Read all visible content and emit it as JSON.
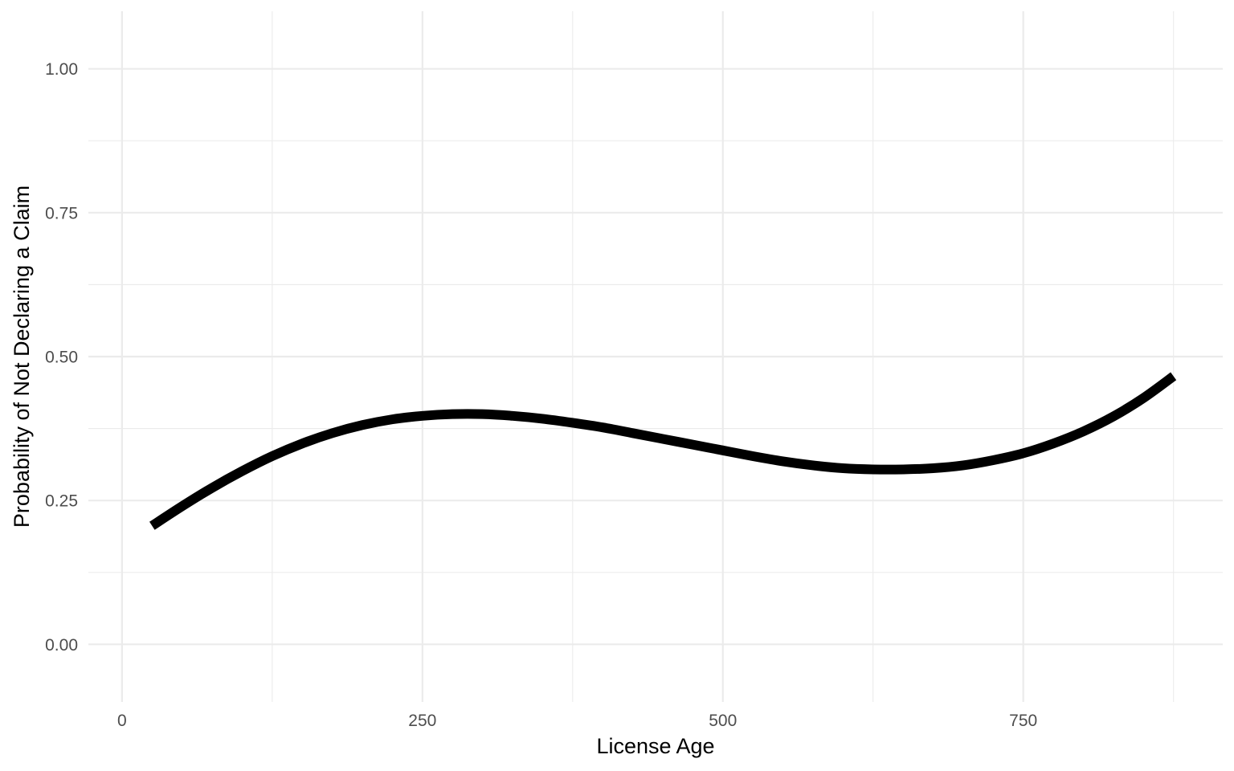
{
  "chart_data": {
    "type": "line",
    "title": "",
    "xlabel": "License Age",
    "ylabel": "Probability of Not Declaring a Claim",
    "xlim": [
      -28,
      916
    ],
    "ylim": [
      -0.1,
      1.1
    ],
    "x_ticks": [
      {
        "value": 0,
        "label": "0"
      },
      {
        "value": 250,
        "label": "250"
      },
      {
        "value": 500,
        "label": "500"
      },
      {
        "value": 750,
        "label": "750"
      }
    ],
    "x_minor_ticks": [
      125,
      375,
      625,
      875
    ],
    "y_ticks": [
      {
        "value": 0.0,
        "label": "0.00"
      },
      {
        "value": 0.25,
        "label": "0.25"
      },
      {
        "value": 0.5,
        "label": "0.50"
      },
      {
        "value": 0.75,
        "label": "0.75"
      },
      {
        "value": 1.0,
        "label": "1.00"
      }
    ],
    "y_minor_ticks": [
      0.125,
      0.375,
      0.625,
      0.875
    ],
    "grid": true,
    "series": [
      {
        "color": "#000000",
        "x": [
          25,
          50,
          75,
          100,
          125,
          150,
          175,
          200,
          225,
          250,
          275,
          300,
          325,
          350,
          375,
          400,
          425,
          450,
          475,
          500,
          525,
          550,
          575,
          600,
          625,
          650,
          675,
          700,
          725,
          750,
          775,
          800,
          825,
          850,
          875
        ],
        "y": [
          0.206,
          0.24,
          0.272,
          0.301,
          0.327,
          0.349,
          0.367,
          0.381,
          0.391,
          0.397,
          0.4,
          0.4,
          0.397,
          0.392,
          0.385,
          0.377,
          0.367,
          0.357,
          0.347,
          0.337,
          0.327,
          0.318,
          0.311,
          0.306,
          0.304,
          0.304,
          0.306,
          0.311,
          0.32,
          0.332,
          0.349,
          0.37,
          0.396,
          0.428,
          0.466
        ]
      }
    ]
  }
}
